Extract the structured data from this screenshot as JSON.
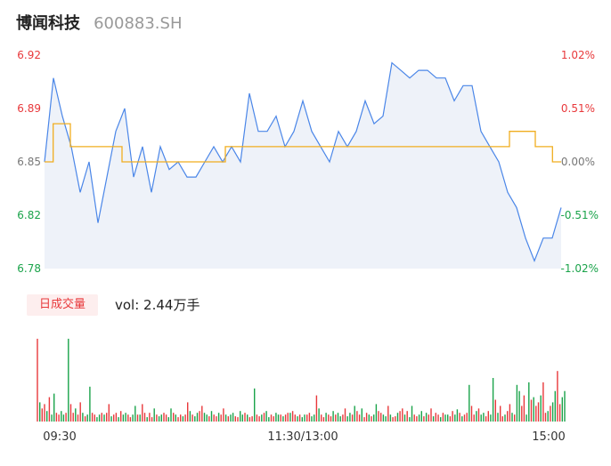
{
  "header": {
    "name": "博闻科技",
    "code": "600883.SH"
  },
  "colors": {
    "up": "#e8383b",
    "down": "#1aa34a",
    "flat": "#777777",
    "price_line": "#4a86e8",
    "avg_line": "#f0ad1f",
    "area_fill": "#eef2f9"
  },
  "price_axis": {
    "left_labels": [
      "6.92",
      "6.89",
      "6.85",
      "6.82",
      "6.78"
    ],
    "right_labels": [
      "1.02%",
      "0.51%",
      "0.00%",
      "-0.51%",
      "-1.02%"
    ]
  },
  "time_axis": {
    "labels": [
      "09:30",
      "11:30/13:00",
      "15:00"
    ]
  },
  "volume_panel": {
    "badge": "日成交量",
    "summary": "vol: 2.44万手"
  },
  "chart_data": [
    {
      "type": "line",
      "series": [
        {
          "x_range": [
            "09:30",
            "15:00"
          ],
          "values": [
            6.85,
            6.905,
            6.88,
            6.86,
            6.83,
            6.85,
            6.81,
            6.84,
            6.87,
            6.885,
            6.84,
            6.86,
            6.83,
            6.86,
            6.845,
            6.85,
            6.84,
            6.84,
            6.85,
            6.86,
            6.85,
            6.86,
            6.85,
            6.895,
            6.87,
            6.87,
            6.88,
            6.86,
            6.87,
            6.89,
            6.87,
            6.86,
            6.85,
            6.87,
            6.86,
            6.87,
            6.89,
            6.875,
            6.88,
            6.915,
            6.91,
            6.905,
            6.91,
            6.91,
            6.905,
            6.905,
            6.89,
            6.9,
            6.9,
            6.87,
            6.86,
            6.85,
            6.83,
            6.82,
            6.8,
            6.785,
            6.8,
            6.8,
            6.82
          ]
        },
        {
          "values": [
            6.85,
            6.875,
            6.875,
            6.86,
            6.86,
            6.86,
            6.86,
            6.86,
            6.86,
            6.85,
            6.85,
            6.85,
            6.85,
            6.85,
            6.85,
            6.85,
            6.85,
            6.85,
            6.85,
            6.85,
            6.85,
            6.86,
            6.86,
            6.86,
            6.86,
            6.86,
            6.86,
            6.86,
            6.86,
            6.86,
            6.86,
            6.86,
            6.86,
            6.86,
            6.86,
            6.86,
            6.86,
            6.86,
            6.86,
            6.86,
            6.86,
            6.86,
            6.86,
            6.86,
            6.86,
            6.86,
            6.86,
            6.86,
            6.86,
            6.86,
            6.86,
            6.86,
            6.86,
            6.86,
            6.87,
            6.87,
            6.87,
            6.86,
            6.86,
            6.85,
            6.85
          ]
        }
      ],
      "ylim": [
        6.78,
        6.92
      ],
      "grid": false
    },
    {
      "type": "bar",
      "x_range": [
        "09:30",
        "15:00"
      ],
      "values": [
        95,
        22,
        15,
        20,
        12,
        28,
        8,
        32,
        10,
        8,
        12,
        8,
        10,
        95,
        20,
        10,
        15,
        8,
        22,
        10,
        6,
        8,
        40,
        10,
        8,
        5,
        8,
        10,
        8,
        10,
        20,
        6,
        8,
        10,
        5,
        12,
        8,
        10,
        8,
        5,
        8,
        18,
        8,
        8,
        20,
        10,
        5,
        10,
        5,
        15,
        8,
        6,
        8,
        10,
        8,
        5,
        15,
        10,
        8,
        5,
        8,
        6,
        8,
        22,
        12,
        8,
        6,
        10,
        12,
        18,
        10,
        8,
        6,
        12,
        8,
        6,
        10,
        8,
        15,
        8,
        6,
        8,
        10,
        6,
        5,
        12,
        8,
        10,
        8,
        5,
        6,
        38,
        8,
        6,
        8,
        10,
        12,
        5,
        8,
        6,
        10,
        8,
        8,
        6,
        8,
        10,
        10,
        12,
        8,
        6,
        8,
        5,
        8,
        8,
        10,
        6,
        8,
        30,
        15,
        8,
        5,
        10,
        8,
        6,
        12,
        8,
        10,
        6,
        8,
        15,
        6,
        10,
        8,
        18,
        12,
        8,
        15,
        5,
        10,
        8,
        6,
        8,
        20,
        12,
        10,
        8,
        6,
        18,
        8,
        5,
        6,
        10,
        12,
        15,
        8,
        12,
        5,
        18,
        8,
        6,
        8,
        12,
        6,
        10,
        8,
        15,
        6,
        10,
        8,
        5,
        10,
        8,
        8,
        6,
        12,
        8,
        14,
        10,
        6,
        8,
        10,
        42,
        18,
        8,
        12,
        15,
        8,
        10,
        6,
        12,
        8,
        50,
        25,
        10,
        18,
        6,
        8,
        12,
        20,
        10,
        8,
        42,
        35,
        18,
        30,
        8,
        45,
        25,
        28,
        18,
        22,
        30,
        45,
        10,
        12,
        18,
        22,
        35,
        58,
        20,
        28,
        35
      ],
      "ylim": [
        0,
        100
      ]
    }
  ]
}
